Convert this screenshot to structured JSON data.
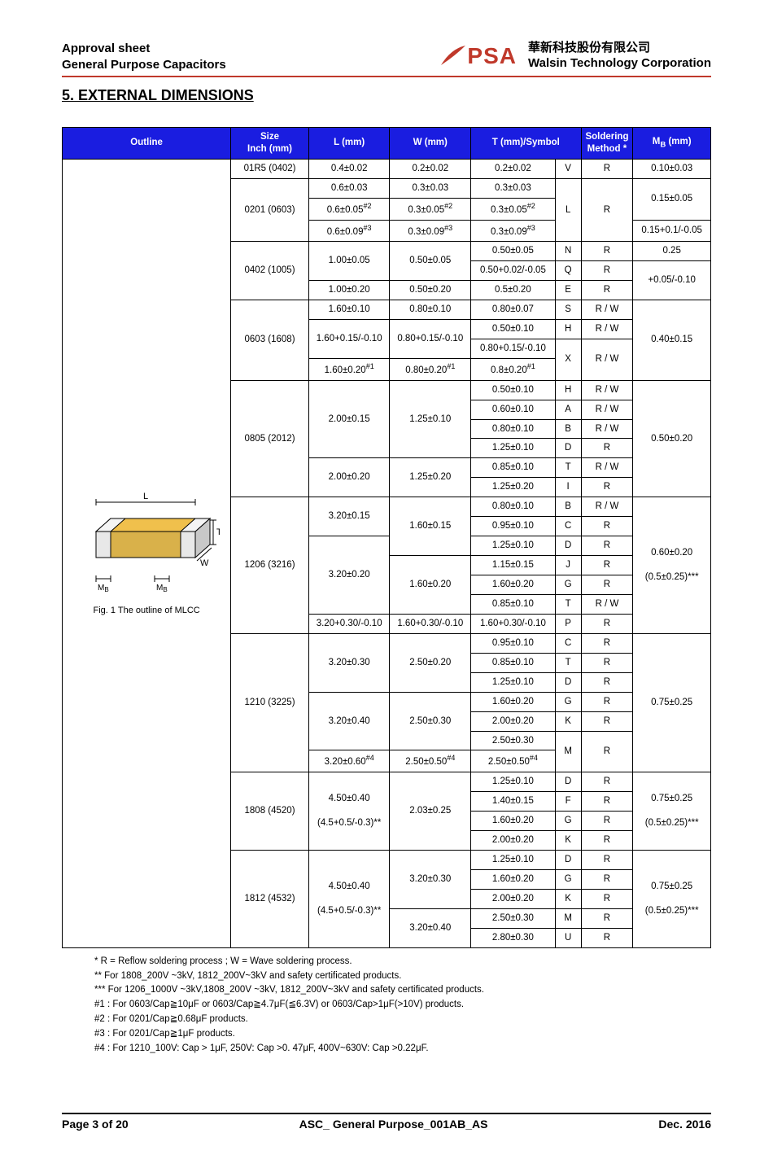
{
  "header": {
    "line1": "Approval sheet",
    "line2": "General Purpose Capacitors",
    "company_zh": "華新科技股份有限公司",
    "company_en": "Walsin Technology Corporation",
    "logo_text_p": "P",
    "logo_text_s": "S",
    "logo_text_a": "A"
  },
  "section_title": "5. EXTERNAL DIMENSIONS",
  "columns": {
    "outline": "Outline",
    "size": "Size\nInch (mm)",
    "l": "L (mm)",
    "w": "W (mm)",
    "t": "T (mm)/Symbol",
    "soldering": "Soldering Method *",
    "mb": "M",
    "mb_sub": "B",
    "mb_unit": " (mm)"
  },
  "figure": {
    "caption": "Fig. 1 The outline of MLCC",
    "label_L": "L",
    "label_T": "T",
    "label_W": "W",
    "label_MB": "M",
    "label_MB_sub": "B",
    "colors": {
      "body_top": "#f0c04c",
      "body_side": "#d9b14a",
      "term_top": "#e8e8e8",
      "term_side": "#c8c8c8",
      "outline": "#000000"
    }
  },
  "colors": {
    "header_bg": "#1a1de0",
    "header_fg": "#ffffff",
    "rule": "#c0392b",
    "border": "#000000"
  },
  "rows": [
    {
      "size": "01R5 (0402)",
      "l": "0.4±0.02",
      "w": "0.2±0.02",
      "t": "0.2±0.02",
      "sym": "V",
      "sold": "R",
      "mb": "0.10±0.03"
    },
    {
      "size": "0201 (0603)",
      "size_rs": 3,
      "l": "0.6±0.03",
      "w": "0.3±0.03",
      "t": "0.3±0.03",
      "sym": "L",
      "sym_rs": 3,
      "sold": "R",
      "sold_rs": 3,
      "mb": "0.15±0.05",
      "mb_rs": 2
    },
    {
      "l": "0.6±0.05<sup>#2</sup>",
      "w": "0.3±0.05<sup>#2</sup>",
      "t": "0.3±0.05<sup>#2</sup>"
    },
    {
      "l": "0.6±0.09<sup>#3</sup>",
      "w": "0.3±0.09<sup>#3</sup>",
      "t": "0.3±0.09<sup>#3</sup>",
      "mb": "0.15+0.1/-0.05"
    },
    {
      "size": "0402 (1005)",
      "size_rs": 3,
      "l": "1.00±0.05",
      "l_rs": 2,
      "w": "0.50±0.05",
      "w_rs": 2,
      "t": "0.50±0.05",
      "sym": "N",
      "sold": "R",
      "mb": "0.25"
    },
    {
      "t": "0.50+0.02/-0.05",
      "sym": "Q",
      "sold": "R",
      "mb": "+0.05/-0.10",
      "mb_rs": 2
    },
    {
      "l": "1.00±0.20",
      "w": "0.50±0.20",
      "t": "0.5±0.20",
      "sym": "E",
      "sold": "R"
    },
    {
      "size": "0603 (1608)",
      "size_rs": 4,
      "l": "1.60±0.10",
      "w": "0.80±0.10",
      "t": "0.80±0.07",
      "sym": "S",
      "sold": "R / W",
      "mb": "0.40±0.15",
      "mb_rs": 4
    },
    {
      "l": "1.60+0.15/-0.10",
      "l_rs": 2,
      "w": "0.80+0.15/-0.10",
      "w_rs": 2,
      "t": "0.50±0.10",
      "sym": "H",
      "sold": "R / W"
    },
    {
      "t": "0.80+0.15/-0.10",
      "sym": "X",
      "sym_rs": 2,
      "sold": "R / W",
      "sold_rs": 2
    },
    {
      "l": "1.60±0.20<sup>#1</sup>",
      "w": "0.80±0.20<sup>#1</sup>",
      "t": "0.8±0.20<sup>#1</sup>"
    },
    {
      "size": "0805 (2012)",
      "size_rs": 6,
      "l": "2.00±0.15",
      "l_rs": 4,
      "w": "1.25±0.10",
      "w_rs": 4,
      "t": "0.50±0.10",
      "sym": "H",
      "sold": "R / W",
      "mb": "0.50±0.20",
      "mb_rs": 6
    },
    {
      "t": "0.60±0.10",
      "sym": "A",
      "sold": "R / W"
    },
    {
      "t": "0.80±0.10",
      "sym": "B",
      "sold": "R / W"
    },
    {
      "t": "1.25±0.10",
      "sym": "D",
      "sold": "R"
    },
    {
      "l": "2.00±0.20",
      "l_rs": 2,
      "w": "1.25±0.20",
      "w_rs": 2,
      "t": "0.85±0.10",
      "sym": "T",
      "sold": "R / W"
    },
    {
      "t": "1.25±0.20",
      "sym": "I",
      "sold": "R"
    },
    {
      "size": "1206 (3216)",
      "size_rs": 7,
      "l": "3.20±0.15",
      "l_rs": 2,
      "w": "1.60±0.15",
      "w_rs": 3,
      "t": "0.80±0.10",
      "sym": "B",
      "sold": "R / W",
      "mb": "0.60±0.20<br><br>(0.5±0.25)***",
      "mb_rs": 7
    },
    {
      "t": "0.95±0.10",
      "sym": "C",
      "sold": "R"
    },
    {
      "l": "3.20±0.20",
      "l_rs": 4,
      "t": "1.25±0.10",
      "sym": "D",
      "sold": "R"
    },
    {
      "w": "1.60±0.20",
      "w_rs": 3,
      "t": "1.15±0.15",
      "sym": "J",
      "sold": "R"
    },
    {
      "t": "1.60±0.20",
      "sym": "G",
      "sold": "R"
    },
    {
      "t": "0.85±0.10",
      "sym": "T",
      "sold": "R / W"
    },
    {
      "l": "3.20+0.30/-0.10",
      "w": "1.60+0.30/-0.10",
      "t": "1.60+0.30/-0.10",
      "sym": "P",
      "sold": "R"
    },
    {
      "size": "1210 (3225)",
      "size_rs": 7,
      "l": "3.20±0.30",
      "l_rs": 3,
      "w": "2.50±0.20",
      "w_rs": 3,
      "t": "0.95±0.10",
      "sym": "C",
      "sold": "R",
      "mb": "0.75±0.25",
      "mb_rs": 7
    },
    {
      "t": "0.85±0.10",
      "sym": "T",
      "sold": "R"
    },
    {
      "t": "1.25±0.10",
      "sym": "D",
      "sold": "R"
    },
    {
      "l": "3.20±0.40",
      "l_rs": 3,
      "w": "2.50±0.30",
      "w_rs": 3,
      "t": "1.60±0.20",
      "sym": "G",
      "sold": "R"
    },
    {
      "t": "2.00±0.20",
      "sym": "K",
      "sold": "R"
    },
    {
      "t": "2.50±0.30",
      "sym": "M",
      "sym_rs": 2,
      "sold": "R",
      "sold_rs": 2
    },
    {
      "l": "3.20±0.60<sup>#4</sup>",
      "w": "2.50±0.50<sup>#4</sup>",
      "t": "2.50±0.50<sup>#4</sup>"
    },
    {
      "size": "1808 (4520)",
      "size_rs": 4,
      "l": "4.50±0.40<br><br>(4.5+0.5/-0.3)**",
      "l_rs": 4,
      "w": "2.03±0.25",
      "w_rs": 4,
      "t": "1.25±0.10",
      "sym": "D",
      "sold": "R",
      "mb": "0.75±0.25<br><br>(0.5±0.25)***",
      "mb_rs": 4
    },
    {
      "t": "1.40±0.15",
      "sym": "F",
      "sold": "R"
    },
    {
      "t": "1.60±0.20",
      "sym": "G",
      "sold": "R"
    },
    {
      "t": "2.00±0.20",
      "sym": "K",
      "sold": "R"
    },
    {
      "size": "1812 (4532)",
      "size_rs": 5,
      "l": "4.50±0.40<br><br>(4.5+0.5/-0.3)**",
      "l_rs": 5,
      "w": "3.20±0.30",
      "w_rs": 3,
      "t": "1.25±0.10",
      "sym": "D",
      "sold": "R",
      "mb": "0.75±0.25<br><br>(0.5±0.25)***",
      "mb_rs": 5
    },
    {
      "t": "1.60±0.20",
      "sym": "G",
      "sold": "R"
    },
    {
      "t": "2.00±0.20",
      "sym": "K",
      "sold": "R"
    },
    {
      "w": "3.20±0.40",
      "w_rs": 2,
      "t": "2.50±0.30",
      "sym": "M",
      "sold": "R"
    },
    {
      "t": "2.80±0.30",
      "sym": "U",
      "sold": "R"
    }
  ],
  "notes": [
    "* R = Reflow soldering process ; W = Wave soldering process.",
    "** For 1808_200V ~3kV, 1812_200V~3kV and safety certificated products.",
    "*** For 1206_1000V ~3kV,1808_200V ~3kV, 1812_200V~3kV and safety certificated products.",
    "#1 : For 0603/Cap≧10μF or 0603/Cap≧4.7μF(≦6.3V) or 0603/Cap>1μF(>10V) products.",
    "#2 : For 0201/Cap≧0.68μF products.",
    "#3 : For 0201/Cap≧1μF products.",
    "#4 : For 1210_100V: Cap > 1μF, 250V: Cap >0. 47μF, 400V~630V: Cap >0.22μF."
  ],
  "footer": {
    "page": "Page 3 of 20",
    "doc": "ASC_ General Purpose_001AB_AS",
    "date": "Dec. 2016"
  }
}
